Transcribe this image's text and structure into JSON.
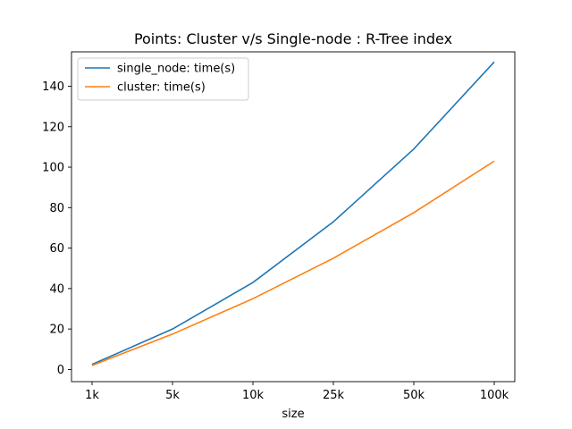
{
  "chart_data": {
    "type": "line",
    "title": "Points: Cluster v/s Single-node : R-Tree index",
    "xlabel": "size",
    "ylabel": "",
    "categories": [
      "1k",
      "5k",
      "10k",
      "25k",
      "50k",
      "100k"
    ],
    "ylim": [
      -6,
      157
    ],
    "yticks": [
      0,
      20,
      40,
      60,
      80,
      100,
      120,
      140
    ],
    "grid": false,
    "legend_position": "top-left",
    "series": [
      {
        "name": "single_node: time(s)",
        "color": "#1f77b4",
        "values": [
          2.5,
          20,
          43,
          73,
          109,
          152
        ]
      },
      {
        "name": "cluster: time(s)",
        "color": "#ff7f0e",
        "values": [
          2,
          17.5,
          35,
          55,
          77.5,
          103
        ]
      }
    ]
  }
}
